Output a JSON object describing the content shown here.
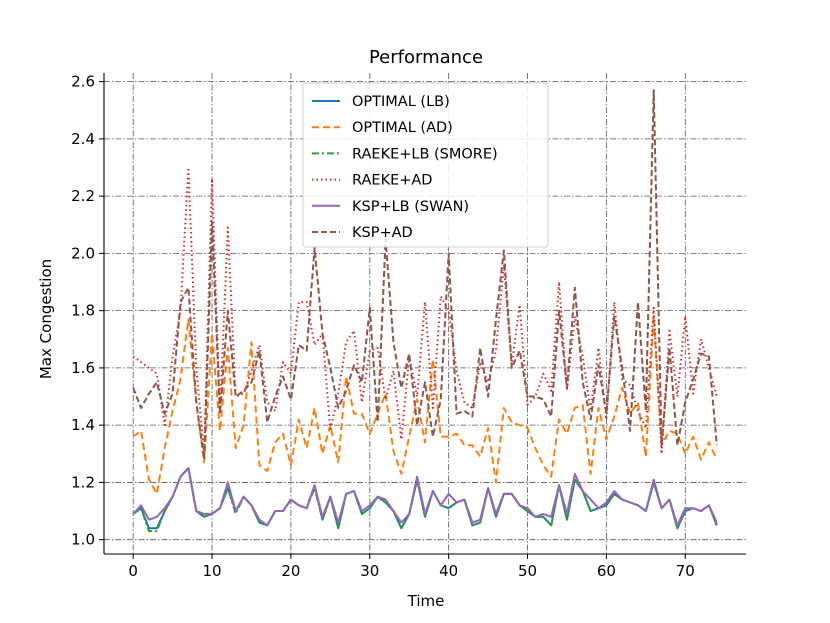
{
  "chart_data": {
    "type": "line",
    "title": "Performance",
    "xlabel": "Time",
    "ylabel": "Max Congestion",
    "xlim": [
      -3.7,
      77.7
    ],
    "ylim": [
      0.95,
      2.63
    ],
    "xticks": [
      0,
      10,
      20,
      30,
      40,
      50,
      60,
      70
    ],
    "yticks": [
      1.0,
      1.2,
      1.4,
      1.6,
      1.8,
      2.0,
      2.2,
      2.4,
      2.6
    ],
    "ytick_labels": [
      "1.0",
      "1.2",
      "1.4",
      "1.6",
      "1.8",
      "2.0",
      "2.2",
      "2.4",
      "2.6"
    ],
    "grid": true,
    "legend_position": "upper-center",
    "x": [
      0,
      1,
      2,
      3,
      4,
      5,
      6,
      7,
      8,
      9,
      10,
      11,
      12,
      13,
      14,
      15,
      16,
      17,
      18,
      19,
      20,
      21,
      22,
      23,
      24,
      25,
      26,
      27,
      28,
      29,
      30,
      31,
      32,
      33,
      34,
      35,
      36,
      37,
      38,
      39,
      40,
      41,
      42,
      43,
      44,
      45,
      46,
      47,
      48,
      49,
      50,
      51,
      52,
      53,
      54,
      55,
      56,
      57,
      58,
      59,
      60,
      61,
      62,
      63,
      64,
      65,
      66,
      67,
      68,
      69,
      70,
      71,
      72,
      73,
      74
    ],
    "series": [
      {
        "name": "OPTIMAL (LB)",
        "color": "#1f77b4",
        "dash": "solid",
        "values": [
          1.09,
          1.11,
          1.04,
          1.04,
          1.1,
          1.15,
          1.22,
          1.25,
          1.1,
          1.08,
          1.09,
          1.11,
          1.18,
          1.1,
          1.15,
          1.12,
          1.06,
          1.05,
          1.1,
          1.1,
          1.14,
          1.12,
          1.11,
          1.19,
          1.07,
          1.15,
          1.04,
          1.16,
          1.17,
          1.09,
          1.11,
          1.15,
          1.13,
          1.1,
          1.04,
          1.09,
          1.21,
          1.08,
          1.17,
          1.12,
          1.11,
          1.13,
          1.14,
          1.05,
          1.06,
          1.18,
          1.08,
          1.16,
          1.16,
          1.12,
          1.1,
          1.08,
          1.08,
          1.05,
          1.19,
          1.07,
          1.21,
          1.17,
          1.1,
          1.11,
          1.12,
          1.16,
          1.14,
          1.13,
          1.12,
          1.1,
          1.2,
          1.11,
          1.14,
          1.04,
          1.1,
          1.11,
          1.1,
          1.12,
          1.05
        ]
      },
      {
        "name": "OPTIMAL (AD)",
        "color": "#ff7f0e",
        "dash": "7,4",
        "values": [
          1.36,
          1.38,
          1.21,
          1.16,
          1.32,
          1.45,
          1.56,
          1.77,
          1.48,
          1.27,
          1.72,
          1.38,
          1.67,
          1.32,
          1.4,
          1.69,
          1.26,
          1.24,
          1.34,
          1.37,
          1.26,
          1.42,
          1.32,
          1.46,
          1.3,
          1.4,
          1.27,
          1.57,
          1.44,
          1.44,
          1.37,
          1.44,
          1.51,
          1.31,
          1.23,
          1.36,
          1.49,
          1.34,
          1.63,
          1.36,
          1.36,
          1.37,
          1.33,
          1.33,
          1.29,
          1.39,
          1.2,
          1.46,
          1.41,
          1.4,
          1.39,
          1.32,
          1.26,
          1.22,
          1.42,
          1.37,
          1.46,
          1.47,
          1.23,
          1.46,
          1.35,
          1.43,
          1.53,
          1.44,
          1.48,
          1.29,
          1.78,
          1.33,
          1.38,
          1.37,
          1.3,
          1.36,
          1.28,
          1.34,
          1.28
        ]
      },
      {
        "name": "RAEKE+LB (SMORE)",
        "color": "#2ca02c",
        "dash": "7,3,2,3",
        "values": [
          1.09,
          1.11,
          1.03,
          1.03,
          1.1,
          1.15,
          1.22,
          1.25,
          1.1,
          1.08,
          1.09,
          1.11,
          1.18,
          1.09,
          1.15,
          1.12,
          1.06,
          1.05,
          1.1,
          1.1,
          1.14,
          1.12,
          1.11,
          1.18,
          1.07,
          1.15,
          1.04,
          1.16,
          1.17,
          1.09,
          1.11,
          1.15,
          1.13,
          1.1,
          1.04,
          1.09,
          1.21,
          1.08,
          1.17,
          1.12,
          1.11,
          1.13,
          1.14,
          1.05,
          1.06,
          1.18,
          1.08,
          1.16,
          1.16,
          1.12,
          1.1,
          1.08,
          1.08,
          1.05,
          1.19,
          1.07,
          1.21,
          1.17,
          1.1,
          1.11,
          1.12,
          1.16,
          1.14,
          1.13,
          1.12,
          1.1,
          1.2,
          1.11,
          1.14,
          1.04,
          1.1,
          1.11,
          1.1,
          1.12,
          1.05
        ]
      },
      {
        "name": "RAEKE+AD",
        "color": "#d62728",
        "dash": "1.5,3",
        "values": [
          1.64,
          1.62,
          1.6,
          1.58,
          1.4,
          1.64,
          1.8,
          2.3,
          1.6,
          1.3,
          2.26,
          1.44,
          2.09,
          1.5,
          1.51,
          1.59,
          1.68,
          1.48,
          1.45,
          1.62,
          1.58,
          1.83,
          1.83,
          1.68,
          1.72,
          1.38,
          1.51,
          1.69,
          1.73,
          1.48,
          1.66,
          1.67,
          1.49,
          1.59,
          1.35,
          1.64,
          1.5,
          1.83,
          1.46,
          1.85,
          1.8,
          1.59,
          1.48,
          1.46,
          1.62,
          1.55,
          1.66,
          1.96,
          1.61,
          1.82,
          1.47,
          1.5,
          1.58,
          1.52,
          1.9,
          1.52,
          1.78,
          1.64,
          1.45,
          1.67,
          1.42,
          1.83,
          1.56,
          1.54,
          1.45,
          1.39,
          1.81,
          1.3,
          1.73,
          1.5,
          1.78,
          1.51,
          1.7,
          1.6,
          1.5
        ]
      },
      {
        "name": "KSP+LB (SWAN)",
        "color": "#9467bd",
        "dash": "solid",
        "values": [
          1.09,
          1.12,
          1.07,
          1.08,
          1.11,
          1.15,
          1.22,
          1.25,
          1.1,
          1.09,
          1.09,
          1.11,
          1.2,
          1.1,
          1.15,
          1.12,
          1.07,
          1.05,
          1.1,
          1.1,
          1.14,
          1.12,
          1.11,
          1.19,
          1.08,
          1.15,
          1.06,
          1.16,
          1.17,
          1.1,
          1.12,
          1.15,
          1.14,
          1.1,
          1.06,
          1.09,
          1.22,
          1.09,
          1.17,
          1.12,
          1.16,
          1.13,
          1.14,
          1.06,
          1.07,
          1.18,
          1.09,
          1.16,
          1.16,
          1.12,
          1.11,
          1.08,
          1.09,
          1.08,
          1.19,
          1.09,
          1.23,
          1.17,
          1.14,
          1.11,
          1.13,
          1.17,
          1.14,
          1.13,
          1.12,
          1.1,
          1.21,
          1.11,
          1.14,
          1.05,
          1.11,
          1.11,
          1.1,
          1.12,
          1.06
        ]
      },
      {
        "name": "KSP+AD",
        "color": "#8c564b",
        "dash": "6,3",
        "values": [
          1.53,
          1.46,
          1.51,
          1.55,
          1.44,
          1.51,
          1.83,
          1.88,
          1.48,
          1.28,
          2.11,
          1.44,
          1.8,
          1.5,
          1.52,
          1.55,
          1.66,
          1.41,
          1.5,
          1.57,
          1.49,
          1.68,
          1.66,
          2.02,
          1.72,
          1.6,
          1.46,
          1.52,
          1.61,
          1.55,
          1.81,
          1.41,
          2.05,
          1.69,
          1.53,
          1.65,
          1.4,
          1.55,
          1.36,
          1.49,
          2.0,
          1.44,
          1.45,
          1.43,
          1.67,
          1.5,
          1.77,
          2.01,
          1.6,
          1.66,
          1.5,
          1.5,
          1.49,
          1.43,
          1.8,
          1.53,
          1.88,
          1.55,
          1.42,
          1.61,
          1.44,
          1.78,
          1.6,
          1.38,
          1.83,
          1.45,
          2.57,
          1.33,
          1.67,
          1.33,
          1.48,
          1.56,
          1.65,
          1.64,
          1.33
        ]
      }
    ]
  }
}
